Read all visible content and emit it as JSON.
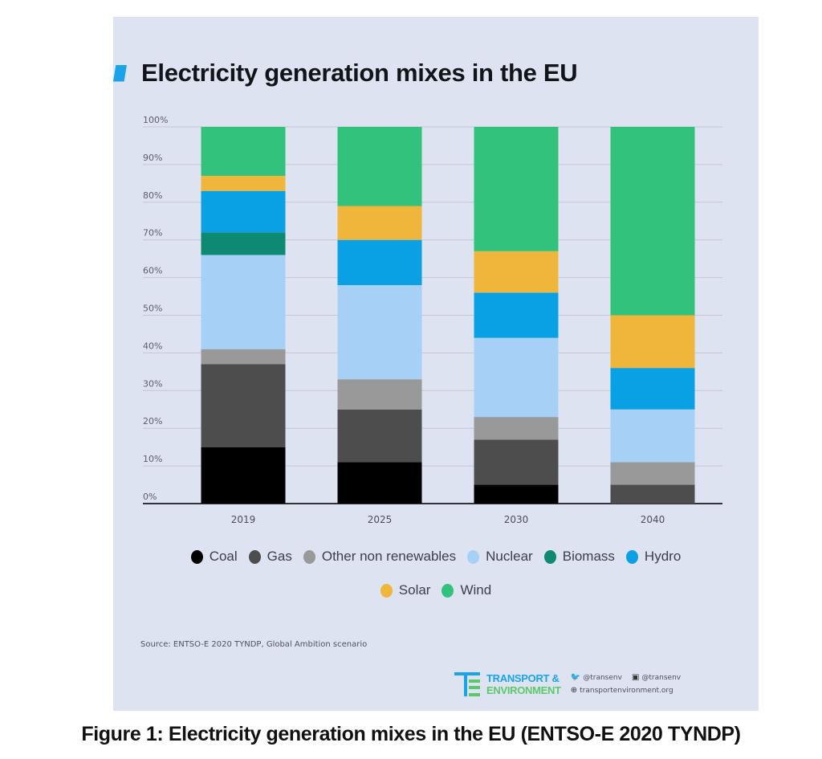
{
  "chart_data": {
    "type": "bar",
    "stacked": true,
    "title": "Electricity generation mixes in the EU",
    "xlabel": "",
    "ylabel": "",
    "ylim": [
      0,
      100
    ],
    "y_ticks": [
      "0%",
      "10%",
      "20%",
      "30%",
      "40%",
      "50%",
      "60%",
      "70%",
      "80%",
      "90%",
      "100%"
    ],
    "grid": true,
    "legend_position": "bottom",
    "categories": [
      "2019",
      "2025",
      "2030",
      "2040"
    ],
    "series": [
      {
        "name": "Coal",
        "color": "#000000",
        "values": [
          15,
          11,
          5,
          0
        ]
      },
      {
        "name": "Gas",
        "color": "#4d4d4d",
        "values": [
          22,
          14,
          12,
          5
        ]
      },
      {
        "name": "Other non renewables",
        "color": "#999999",
        "values": [
          4,
          8,
          6,
          6
        ]
      },
      {
        "name": "Nuclear",
        "color": "#a7d0f7",
        "values": [
          25,
          25,
          21,
          14
        ]
      },
      {
        "name": "Biomass",
        "color": "#0e8a72",
        "values": [
          6,
          0,
          0,
          0
        ]
      },
      {
        "name": "Hydro",
        "color": "#0aa0e4",
        "values": [
          11,
          12,
          12,
          11
        ]
      },
      {
        "name": "Solar",
        "color": "#f0b63c",
        "values": [
          4,
          9,
          11,
          14
        ]
      },
      {
        "name": "Wind",
        "color": "#33c27b",
        "values": [
          13,
          21,
          33,
          50
        ]
      }
    ],
    "source": "Source: ENTSO-E 2020 TYNDP, Global Ambition scenario"
  },
  "branding": {
    "line1": "TRANSPORT &",
    "line2": "ENVIRONMENT",
    "twitter": "@transenv",
    "facebook": "@transenv",
    "website": "transportenvironment.org"
  },
  "caption": "Figure 1: Electricity generation mixes in the EU (ENTSO-E 2020 TYNDP)"
}
